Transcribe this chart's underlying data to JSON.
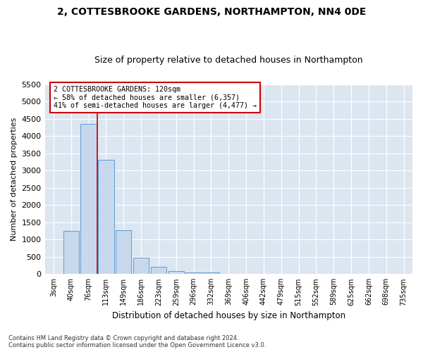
{
  "title": "2, COTTESBROOKE GARDENS, NORTHAMPTON, NN4 0DE",
  "subtitle": "Size of property relative to detached houses in Northampton",
  "xlabel": "Distribution of detached houses by size in Northampton",
  "ylabel": "Number of detached properties",
  "footnote1": "Contains HM Land Registry data © Crown copyright and database right 2024.",
  "footnote2": "Contains public sector information licensed under the Open Government Licence v3.0.",
  "bar_labels": [
    "3sqm",
    "40sqm",
    "76sqm",
    "113sqm",
    "149sqm",
    "186sqm",
    "223sqm",
    "259sqm",
    "296sqm",
    "332sqm",
    "369sqm",
    "406sqm",
    "442sqm",
    "479sqm",
    "515sqm",
    "552sqm",
    "589sqm",
    "625sqm",
    "662sqm",
    "698sqm",
    "735sqm"
  ],
  "bar_values": [
    0,
    1260,
    4340,
    3300,
    1280,
    480,
    215,
    90,
    55,
    55,
    0,
    0,
    0,
    0,
    0,
    0,
    0,
    0,
    0,
    0,
    0
  ],
  "bar_color": "#c8d8ec",
  "bar_edgecolor": "#5b9bd5",
  "property_line_x": 2.5,
  "property_label": "2 COTTESBROOKE GARDENS: 120sqm",
  "annotation_line1": "← 58% of detached houses are smaller (6,357)",
  "annotation_line2": "41% of semi-detached houses are larger (4,477) →",
  "box_edgecolor": "#cc0000",
  "ylim": [
    0,
    5500
  ],
  "yticks": [
    0,
    500,
    1000,
    1500,
    2000,
    2500,
    3000,
    3500,
    4000,
    4500,
    5000,
    5500
  ],
  "fig_facecolor": "#ffffff",
  "ax_facecolor": "#dce6f1",
  "grid_color": "#ffffff",
  "title_fontsize": 10,
  "subtitle_fontsize": 9
}
